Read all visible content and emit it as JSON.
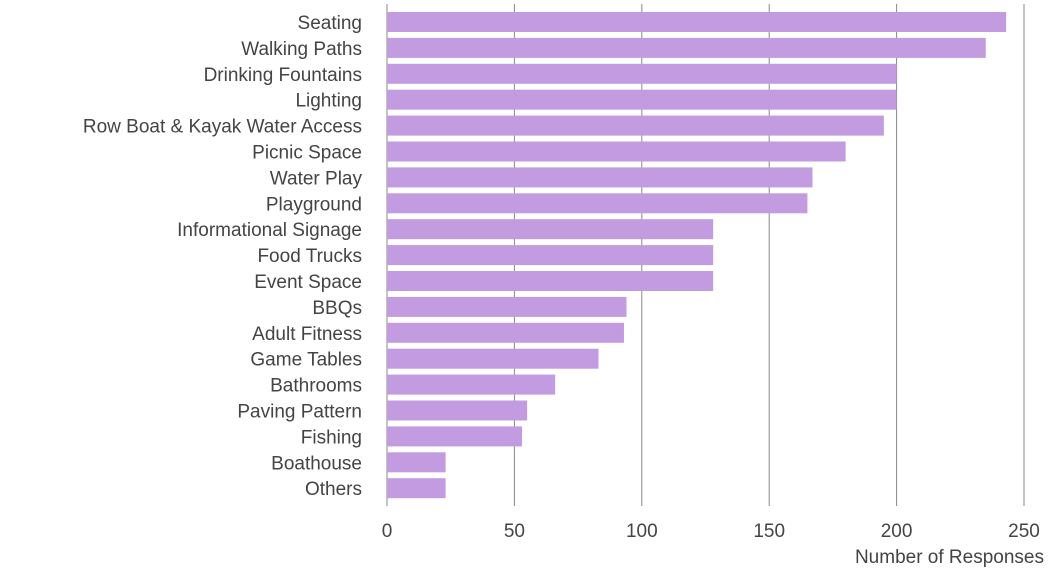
{
  "chart_data": {
    "type": "bar",
    "orientation": "horizontal",
    "categories": [
      "Seating",
      "Walking Paths",
      "Drinking Fountains",
      "Lighting",
      "Row Boat & Kayak Water Access",
      "Picnic Space",
      "Water Play",
      "Playground",
      "Informational Signage",
      "Food Trucks",
      "Event Space",
      "BBQs",
      "Adult Fitness",
      "Game Tables",
      "Bathrooms",
      "Paving Pattern",
      "Fishing",
      "Boathouse",
      "Others"
    ],
    "values": [
      243,
      235,
      200,
      200,
      195,
      180,
      167,
      165,
      128,
      128,
      128,
      94,
      93,
      83,
      66,
      55,
      53,
      23,
      23
    ],
    "title": "",
    "xlabel": "Number of Responses",
    "ylabel": "",
    "xlim": [
      0,
      250
    ],
    "xticks": [
      0,
      50,
      100,
      150,
      200,
      250
    ],
    "grid": "vertical",
    "legend": "none",
    "bar_color": "#C39BE1",
    "grid_color": "#888888",
    "text_color": "#444444"
  }
}
